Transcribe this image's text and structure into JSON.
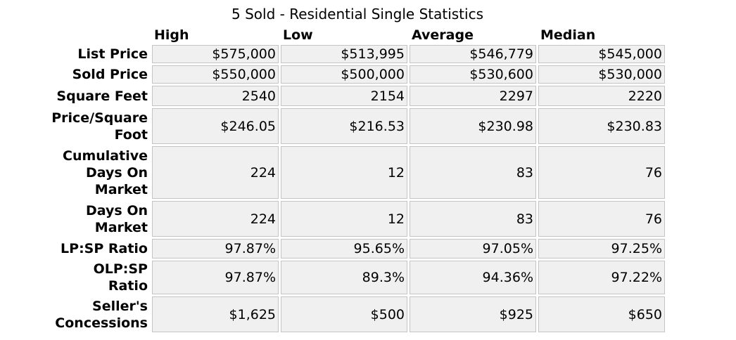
{
  "title": "5 Sold - Residential Single Statistics",
  "columns": {
    "high": "High",
    "low": "Low",
    "average": "Average",
    "median": "Median"
  },
  "rows": [
    {
      "label": "List Price",
      "high": "$575,000",
      "low": "$513,995",
      "average": "$546,779",
      "median": "$545,000"
    },
    {
      "label": "Sold Price",
      "high": "$550,000",
      "low": "$500,000",
      "average": "$530,600",
      "median": "$530,000"
    },
    {
      "label": "Square Feet",
      "high": "2540",
      "low": "2154",
      "average": "2297",
      "median": "2220"
    },
    {
      "label": "Price/Square Foot",
      "high": "$246.05",
      "low": "$216.53",
      "average": "$230.98",
      "median": "$230.83"
    },
    {
      "label": "Cumulative Days On Market",
      "high": "224",
      "low": "12",
      "average": "83",
      "median": "76"
    },
    {
      "label": "Days On Market",
      "high": "224",
      "low": "12",
      "average": "83",
      "median": "76"
    },
    {
      "label": "LP:SP Ratio",
      "high": "97.87%",
      "low": "95.65%",
      "average": "97.05%",
      "median": "97.25%"
    },
    {
      "label": "OLP:SP Ratio",
      "high": "97.87%",
      "low": "89.3%",
      "average": "94.36%",
      "median": "97.22%"
    },
    {
      "label": "Seller's Concessions",
      "high": "$1,625",
      "low": "$500",
      "average": "$925",
      "median": "$650"
    }
  ]
}
